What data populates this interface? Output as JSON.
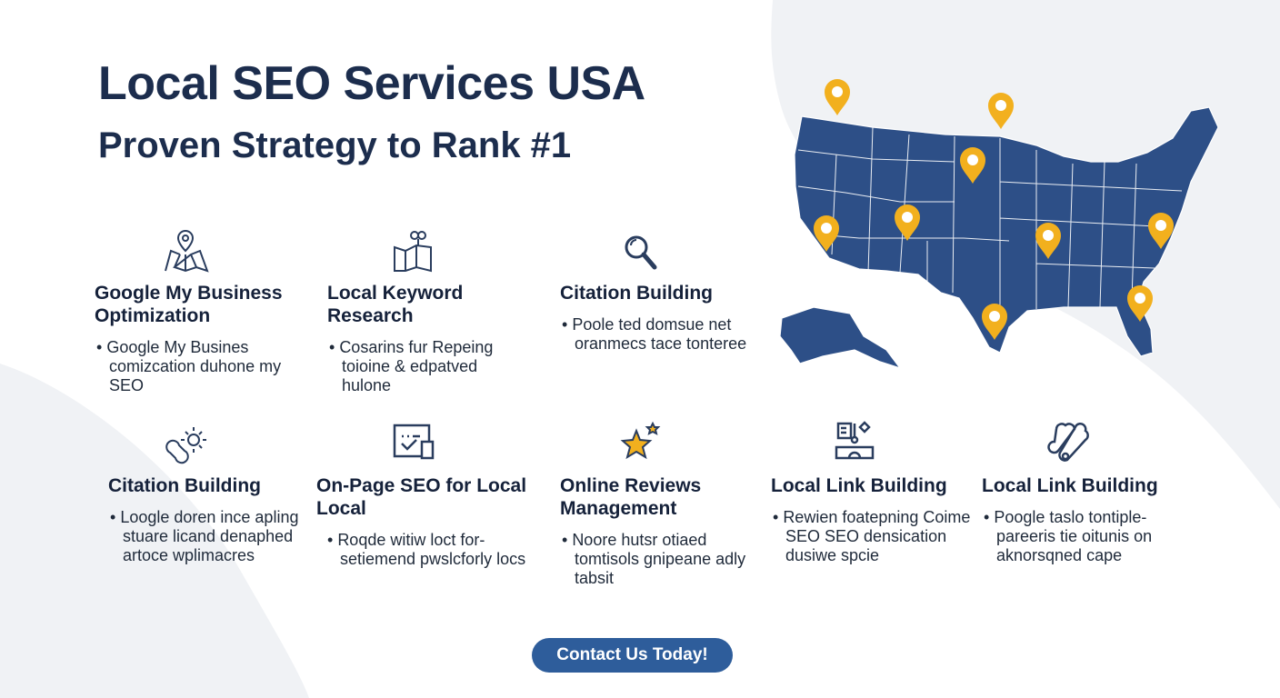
{
  "header": {
    "title": "Local SEO Services USA",
    "subtitle": "Proven Strategy to Rank #1"
  },
  "colors": {
    "navy": "#1c2d4d",
    "map": "#2d4f87",
    "pin": "#f2b01e",
    "button": "#2e5d9b"
  },
  "services": [
    {
      "icon": "map-pin-icon",
      "title": "Google My Business Optimization",
      "bullet": "Google My Busines comizcation duhone my SEO"
    },
    {
      "icon": "map-keyword-icon",
      "title": "Local Keyword Research",
      "bullet": "Cosarins fur Repeing toioine & edpatved hulone"
    },
    {
      "icon": "magnifier-icon",
      "title": "Citation Building",
      "bullet": "Poole ted domsue net oranmecs tace tonteree"
    },
    {
      "icon": "link-sun-icon",
      "title": "Citation Building",
      "bullet": "Loogle doren ince apling stuare licand denaphed artoce wplimacres"
    },
    {
      "icon": "checklist-device-icon",
      "title": "On-Page SEO for Local Local",
      "bullet": "Roqde witiw loct for-setiemend pwslcforly locs"
    },
    {
      "icon": "star-icon",
      "title": "Online Reviews Management",
      "bullet": "Noore hutsr otiaed tomtisols gnipeane adly tabsit"
    },
    {
      "icon": "link-building-icon",
      "title": "Local Link Building",
      "bullet": "Rewien foatepning Coime SEO SEO densication dusiwe spcie"
    },
    {
      "icon": "network-icon",
      "title": "Local Link Building",
      "bullet": "Poogle taslo tontiple-pareeris tie oitunis on aknorsqned cape"
    }
  ],
  "map": {
    "icon": "usa-map-icon",
    "pins": 10
  },
  "cta": {
    "label": "Contact Us Today!"
  }
}
